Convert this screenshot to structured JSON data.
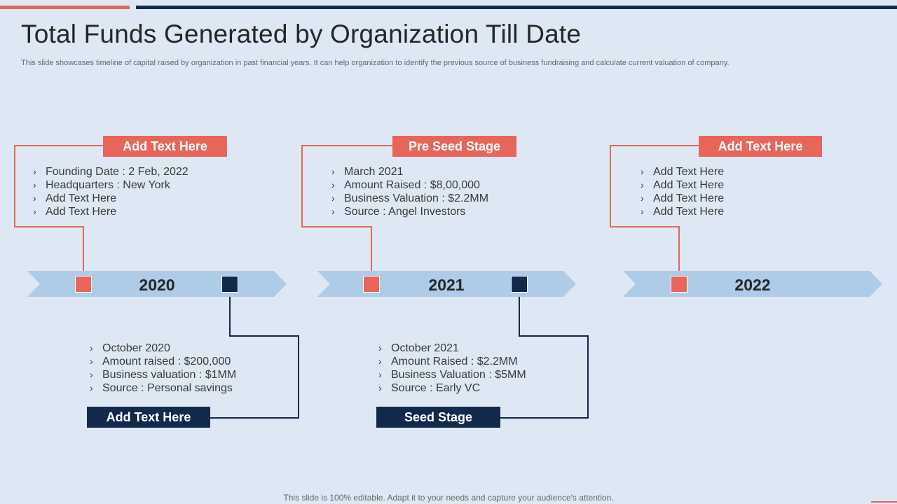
{
  "header": {
    "title": "Total Funds Generated by Organization Till Date",
    "subtitle": "This slide showcases timeline of capital raised by organization in past financial years. It can help organization to identify the previous source of business fundraising and calculate current valuation of company."
  },
  "colors": {
    "accent_red": "#e8655a",
    "navy": "#13294b",
    "arrow": "#aecbe8",
    "background": "#dde8f4"
  },
  "timeline": {
    "years": [
      "2020",
      "2021",
      "2022"
    ],
    "top_cards": [
      {
        "label": "Add Text Here",
        "items": [
          "Founding Date : 2 Feb, 2022",
          "Headquarters : New York",
          "Add Text Here",
          "Add Text Here"
        ]
      },
      {
        "label": "Pre Seed Stage",
        "items": [
          "March 2021",
          "Amount Raised : $8,00,000",
          "Business Valuation : $2.2MM",
          "Source : Angel Investors"
        ]
      },
      {
        "label": "Add Text Here",
        "items": [
          "Add Text Here",
          "Add Text Here",
          "Add Text Here",
          "Add Text Here"
        ]
      }
    ],
    "bottom_cards": [
      {
        "label": "Add Text Here",
        "items": [
          "October 2020",
          "Amount raised : $200,000",
          "Business valuation : $1MM",
          "Source : Personal savings"
        ]
      },
      {
        "label": "Seed Stage",
        "items": [
          "October 2021",
          "Amount Raised : $2.2MM",
          "Business Valuation : $5MM",
          "Source : Early VC"
        ]
      }
    ]
  },
  "footer": {
    "text": "This slide is 100% editable. Adapt it to your needs and capture your audience's attention."
  }
}
